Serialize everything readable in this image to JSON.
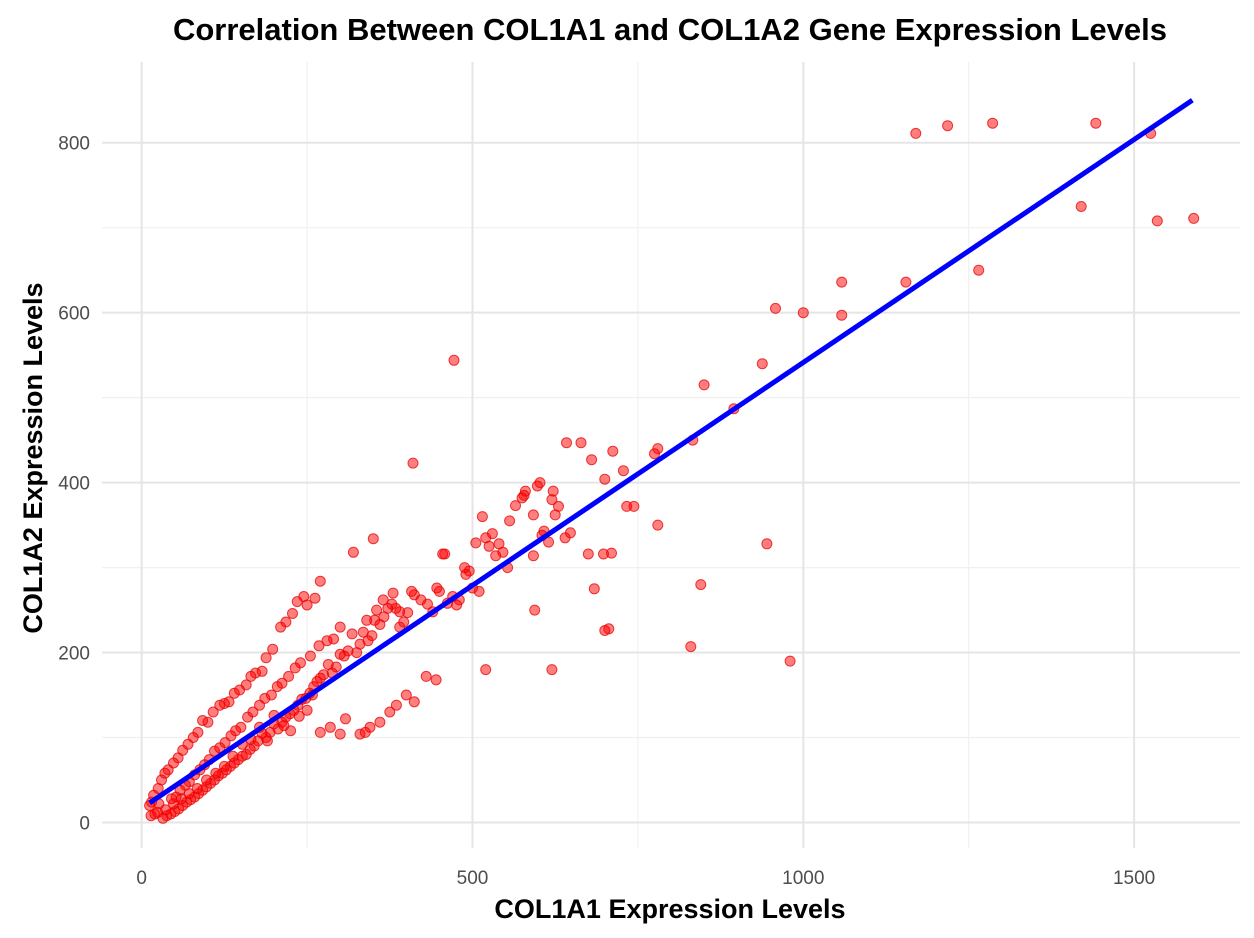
{
  "chart_data": {
    "type": "scatter",
    "title": "Correlation Between COL1A1 and COL1A2 Gene Expression Levels",
    "xlabel": "COL1A1 Expression Levels",
    "ylabel": "COL1A2 Expression Levels",
    "xlim": [
      -60,
      1660
    ],
    "ylim": [
      -30,
      895
    ],
    "x_ticks": [
      0,
      500,
      1000,
      1500
    ],
    "y_ticks": [
      0,
      200,
      400,
      600,
      800
    ],
    "x_tick_labels": [
      "0",
      "500",
      "1000",
      "1500"
    ],
    "y_tick_labels": [
      "0",
      "200",
      "400",
      "600",
      "800"
    ],
    "grid": true,
    "legend": "none",
    "colors": {
      "points": "#ff0000",
      "fit_line": "#0000ff"
    },
    "fit_line": {
      "x": [
        12,
        1588
      ],
      "y": [
        23,
        850
      ]
    },
    "series": [
      {
        "x": [
          1170,
          1218,
          1286,
          1442,
          1525,
          1535,
          1590,
          1420,
          1265,
          1155,
          1058,
          1058,
          1000,
          958,
          938,
          850,
          895,
          833,
          780,
          780,
          744,
          733,
          728,
          712,
          710,
          700,
          706,
          698,
          684,
          680,
          664,
          648,
          642,
          640,
          630,
          625,
          622,
          620,
          615,
          608,
          605,
          602,
          598,
          592,
          594,
          580,
          578,
          575,
          565,
          556,
          553,
          546,
          540,
          535,
          530,
          525,
          520,
          515,
          510,
          505,
          500,
          495,
          490,
          488,
          480,
          476,
          470,
          462,
          458,
          450,
          446,
          440,
          432,
          422,
          412,
          408,
          402,
          396,
          390,
          384,
          378,
          372,
          366,
          360,
          352,
          348,
          342,
          335,
          330,
          325,
          318,
          312,
          306,
          300,
          294,
          288,
          282,
          275,
          270,
          265,
          260,
          254,
          248,
          242,
          236,
          230,
          224,
          218,
          212,
          206,
          200,
          194,
          188,
          182,
          176,
          170,
          164,
          158,
          152,
          146,
          140,
          134,
          128,
          122,
          116,
          110,
          104,
          98,
          92,
          86,
          80,
          74,
          68,
          62,
          56,
          50,
          44,
          38,
          32,
          26,
          20,
          14,
          472,
          410,
          350,
          320,
          980,
          945,
          845,
          830,
          775,
          700,
          675,
          620,
          592,
          520,
          455,
          445,
          430,
          412,
          400,
          385,
          375,
          360,
          345,
          338,
          330,
          308,
          300,
          285,
          270,
          258,
          250,
          238,
          225,
          215,
          200,
          190,
          178,
          165,
          152,
          138,
          125,
          112,
          98,
          84,
          72,
          60,
          48,
          36,
          24,
          270,
          262,
          250,
          245,
          235,
          228,
          218,
          210,
          198,
          188,
          182,
          172,
          165,
          158,
          148,
          140,
          132,
          125,
          118,
          108,
          100,
          92,
          85,
          78,
          70,
          62,
          55,
          48,
          40,
          35,
          30,
          25,
          18,
          15,
          12,
          380,
          390,
          365,
          355,
          340,
          300,
          290,
          280,
          268,
          255,
          240,
          232,
          222,
          212,
          205,
          196,
          186,
          178,
          168,
          160,
          150,
          142,
          135,
          126,
          118,
          110,
          102,
          95,
          88,
          80,
          72,
          66,
          58,
          52,
          45
        ],
        "y": [
          811,
          820,
          823,
          823,
          811,
          708,
          711,
          725,
          650,
          636,
          636,
          597,
          600,
          605,
          540,
          515,
          487,
          450,
          440,
          350,
          372,
          372,
          414,
          437,
          317,
          404,
          228,
          316,
          275,
          427,
          447,
          341,
          447,
          335,
          372,
          362,
          390,
          380,
          330,
          343,
          338,
          400,
          396,
          362,
          250,
          390,
          385,
          382,
          373,
          355,
          300,
          318,
          328,
          314,
          340,
          325,
          335,
          360,
          272,
          329,
          276,
          296,
          292,
          300,
          262,
          256,
          266,
          258,
          316,
          272,
          276,
          248,
          257,
          262,
          268,
          272,
          247,
          236,
          248,
          252,
          257,
          252,
          242,
          233,
          238,
          220,
          214,
          224,
          210,
          200,
          222,
          202,
          196,
          198,
          183,
          176,
          186,
          174,
          170,
          166,
          160,
          152,
          146,
          145,
          138,
          132,
          128,
          124,
          118,
          110,
          116,
          106,
          100,
          105,
          96,
          90,
          86,
          80,
          78,
          74,
          70,
          66,
          62,
          58,
          55,
          50,
          46,
          42,
          38,
          34,
          30,
          27,
          24,
          20,
          16,
          13,
          10,
          8,
          5,
          22,
          10,
          8,
          544,
          423,
          334,
          318,
          190,
          328,
          280,
          207,
          434,
          226,
          316,
          180,
          314,
          180,
          316,
          168,
          172,
          142,
          150,
          138,
          130,
          118,
          112,
          106,
          104,
          122,
          104,
          112,
          106,
          150,
          132,
          125,
          108,
          114,
          126,
          96,
          112,
          98,
          92,
          78,
          66,
          58,
          50,
          40,
          34,
          28,
          22,
          15,
          12,
          284,
          264,
          256,
          266,
          260,
          246,
          236,
          230,
          204,
          194,
          178,
          176,
          172,
          162,
          156,
          152,
          142,
          140,
          138,
          130,
          118,
          120,
          106,
          100,
          92,
          85,
          76,
          70,
          62,
          58,
          50,
          40,
          32,
          24,
          20,
          270,
          230,
          262,
          250,
          238,
          230,
          216,
          214,
          208,
          196,
          188,
          182,
          172,
          164,
          160,
          150,
          146,
          138,
          130,
          124,
          112,
          108,
          102,
          94,
          88,
          84,
          74,
          68,
          62,
          56,
          48,
          44,
          38,
          30,
          28
        ]
      }
    ]
  }
}
